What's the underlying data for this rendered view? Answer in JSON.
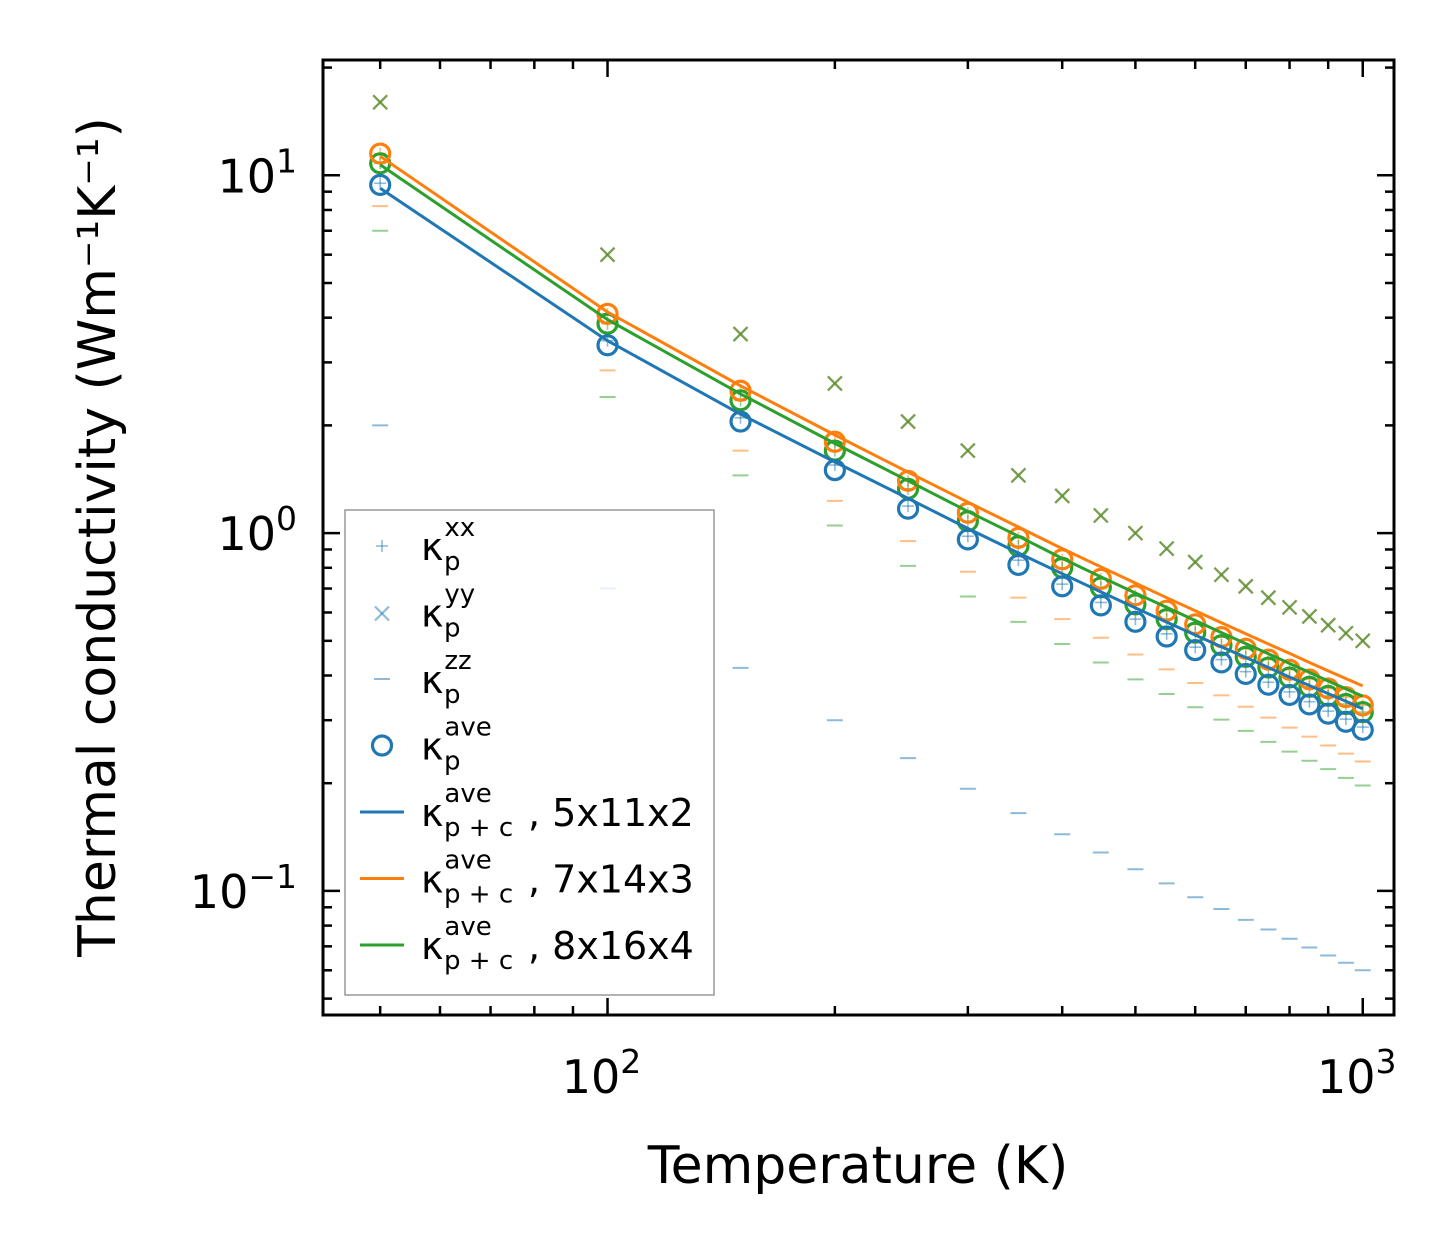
{
  "chart_data": {
    "type": "scatter",
    "xscale": "log",
    "yscale": "log",
    "xlim": [
      42,
      1100
    ],
    "ylim": [
      0.045,
      21
    ],
    "xlabel": "Temperature (K)",
    "ylabel": "Thermal conductivity (Wm⁻¹K⁻¹)",
    "x_ticks": [
      {
        "value": 100,
        "base": "10",
        "exp": "2"
      },
      {
        "value": 1000,
        "base": "10",
        "exp": "3"
      }
    ],
    "y_ticks": [
      {
        "value": 0.1,
        "base": "10",
        "exp": "−1"
      },
      {
        "value": 1,
        "base": "10",
        "exp": "0"
      },
      {
        "value": 10,
        "base": "10",
        "exp": "1"
      }
    ],
    "legend_position": "bottom-left",
    "colors": {
      "blue": "#1f77b4",
      "orange": "#ff7f0e",
      "green": "#2ca02c"
    },
    "temperatures": [
      50,
      100,
      150,
      200,
      250,
      300,
      350,
      400,
      450,
      500,
      550,
      600,
      650,
      700,
      750,
      800,
      850,
      900,
      950,
      1000
    ],
    "series": [
      {
        "name": "5x11x2",
        "color": "#1f77b4",
        "xx": [
          9.5,
          3.45,
          2.1,
          1.55,
          1.19,
          0.98,
          0.84,
          0.72,
          0.64,
          0.575,
          0.523,
          0.48,
          0.443,
          0.41,
          0.383,
          0.36,
          0.338,
          0.318,
          0.302,
          0.287
        ],
        "yy": [
          16.0,
          6.0,
          3.6,
          2.62,
          2.05,
          1.7,
          1.45,
          1.27,
          1.12,
          1.0,
          0.905,
          0.83,
          0.765,
          0.71,
          0.66,
          0.62,
          0.585,
          0.553,
          0.525,
          0.5
        ],
        "zz": [
          2.0,
          0.7,
          0.42,
          0.3,
          0.235,
          0.193,
          0.165,
          0.144,
          0.128,
          0.115,
          0.105,
          0.096,
          0.089,
          0.083,
          0.078,
          0.0735,
          0.0695,
          0.066,
          0.063,
          0.06
        ],
        "ave": [
          9.4,
          3.35,
          2.05,
          1.5,
          1.17,
          0.96,
          0.815,
          0.71,
          0.628,
          0.565,
          0.514,
          0.471,
          0.435,
          0.404,
          0.377,
          0.353,
          0.332,
          0.313,
          0.297,
          0.282
        ],
        "pc": [
          9.2,
          3.45,
          2.15,
          1.58,
          1.25,
          1.03,
          0.88,
          0.77,
          0.685,
          0.618,
          0.564,
          0.519,
          0.481,
          0.449,
          0.421,
          0.396,
          0.375,
          0.356,
          0.339,
          0.323
        ]
      },
      {
        "name": "7x14x3",
        "color": "#ff7f0e",
        "xx": [
          11.5,
          4.1,
          2.5,
          1.8,
          1.4,
          1.14,
          0.97,
          0.84,
          0.745,
          0.67,
          0.607,
          0.556,
          0.512,
          0.475,
          0.443,
          0.415,
          0.39,
          0.368,
          0.348,
          0.33
        ],
        "yy": [
          16.0,
          6.0,
          3.6,
          2.62,
          2.05,
          1.7,
          1.45,
          1.27,
          1.12,
          1.0,
          0.905,
          0.83,
          0.765,
          0.71,
          0.66,
          0.62,
          0.585,
          0.553,
          0.525,
          0.5
        ],
        "zz": [
          8.2,
          2.85,
          1.7,
          1.23,
          0.95,
          0.78,
          0.66,
          0.575,
          0.51,
          0.458,
          0.416,
          0.381,
          0.352,
          0.327,
          0.305,
          0.286,
          0.27,
          0.255,
          0.242,
          0.23
        ],
        "ave": [
          11.5,
          4.1,
          2.5,
          1.8,
          1.4,
          1.14,
          0.97,
          0.845,
          0.745,
          0.67,
          0.607,
          0.556,
          0.512,
          0.475,
          0.443,
          0.415,
          0.39,
          0.368,
          0.348,
          0.33
        ],
        "pc": [
          11.3,
          4.15,
          2.58,
          1.88,
          1.48,
          1.22,
          1.04,
          0.905,
          0.805,
          0.725,
          0.66,
          0.607,
          0.562,
          0.523,
          0.49,
          0.461,
          0.435,
          0.412,
          0.392,
          0.374
        ]
      },
      {
        "name": "8x16x4",
        "color": "#2ca02c",
        "xx": [
          10.8,
          3.85,
          2.35,
          1.7,
          1.33,
          1.08,
          0.92,
          0.8,
          0.705,
          0.632,
          0.575,
          0.527,
          0.486,
          0.451,
          0.421,
          0.395,
          0.372,
          0.351,
          0.333,
          0.316
        ],
        "yy": [
          16.0,
          6.0,
          3.6,
          2.62,
          2.05,
          1.7,
          1.45,
          1.27,
          1.12,
          1.0,
          0.905,
          0.83,
          0.765,
          0.71,
          0.66,
          0.62,
          0.585,
          0.553,
          0.525,
          0.5
        ],
        "zz": [
          7.0,
          2.4,
          1.45,
          1.05,
          0.81,
          0.665,
          0.565,
          0.49,
          0.435,
          0.39,
          0.355,
          0.326,
          0.301,
          0.28,
          0.261,
          0.245,
          0.231,
          0.219,
          0.207,
          0.197
        ],
        "ave": [
          10.8,
          3.85,
          2.35,
          1.7,
          1.33,
          1.08,
          0.92,
          0.8,
          0.705,
          0.632,
          0.575,
          0.527,
          0.486,
          0.451,
          0.421,
          0.395,
          0.372,
          0.351,
          0.333,
          0.316
        ],
        "pc": [
          10.7,
          3.95,
          2.45,
          1.78,
          1.4,
          1.15,
          0.98,
          0.85,
          0.755,
          0.68,
          0.62,
          0.57,
          0.527,
          0.491,
          0.46,
          0.432,
          0.408,
          0.386,
          0.367,
          0.35
        ]
      }
    ],
    "legend": [
      {
        "key": "xx",
        "label": "κ",
        "sub": "p",
        "sup": "xx",
        "extra": ""
      },
      {
        "key": "yy",
        "label": "κ",
        "sub": "p",
        "sup": "yy",
        "extra": ""
      },
      {
        "key": "zz",
        "label": "κ",
        "sub": "p",
        "sup": "zz",
        "extra": ""
      },
      {
        "key": "ave",
        "label": "κ",
        "sub": "p",
        "sup": "ave",
        "extra": ""
      },
      {
        "key": "pc0",
        "label": "κ",
        "sub": "p + c",
        "sup": "ave",
        "extra": ", 5x11x2"
      },
      {
        "key": "pc1",
        "label": "κ",
        "sub": "p + c",
        "sup": "ave",
        "extra": ", 7x14x3"
      },
      {
        "key": "pc2",
        "label": "κ",
        "sub": "p + c",
        "sup": "ave",
        "extra": ", 8x16x4"
      }
    ]
  }
}
